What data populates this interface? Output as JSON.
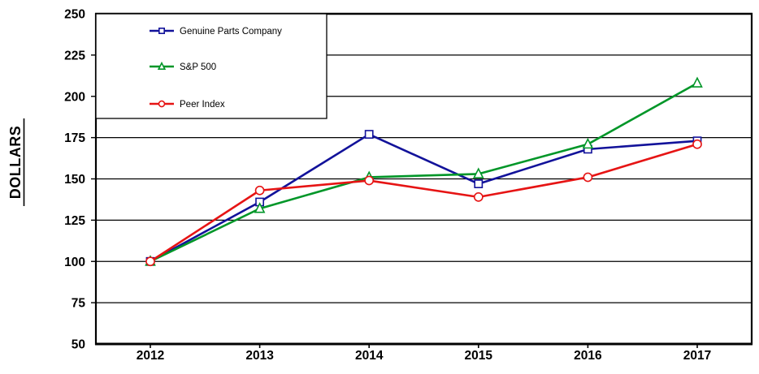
{
  "page": {
    "background": "#ffffff",
    "frame_color": "#000000",
    "gridline_color": "#000000"
  },
  "chart_data": {
    "type": "line",
    "title": "",
    "xlabel": "",
    "ylabel": "DOLLARS",
    "x": [
      "2012",
      "2013",
      "2014",
      "2015",
      "2016",
      "2017"
    ],
    "series": [
      {
        "name": "Genuine Parts Company",
        "color": "#12129a",
        "marker": "square",
        "values": [
          100,
          136,
          177,
          147,
          168,
          173
        ]
      },
      {
        "name": "S&P 500",
        "color": "#009628",
        "marker": "triangle",
        "values": [
          100,
          132,
          151,
          153,
          171,
          208
        ]
      },
      {
        "name": "Peer Index",
        "color": "#e61414",
        "marker": "circle",
        "values": [
          100,
          143,
          149,
          139,
          151,
          171
        ]
      }
    ],
    "ylim": [
      50,
      250
    ],
    "yticks": [
      50,
      75,
      100,
      125,
      150,
      175,
      200,
      225,
      250
    ],
    "grid": true,
    "legend_position": "top-left"
  }
}
